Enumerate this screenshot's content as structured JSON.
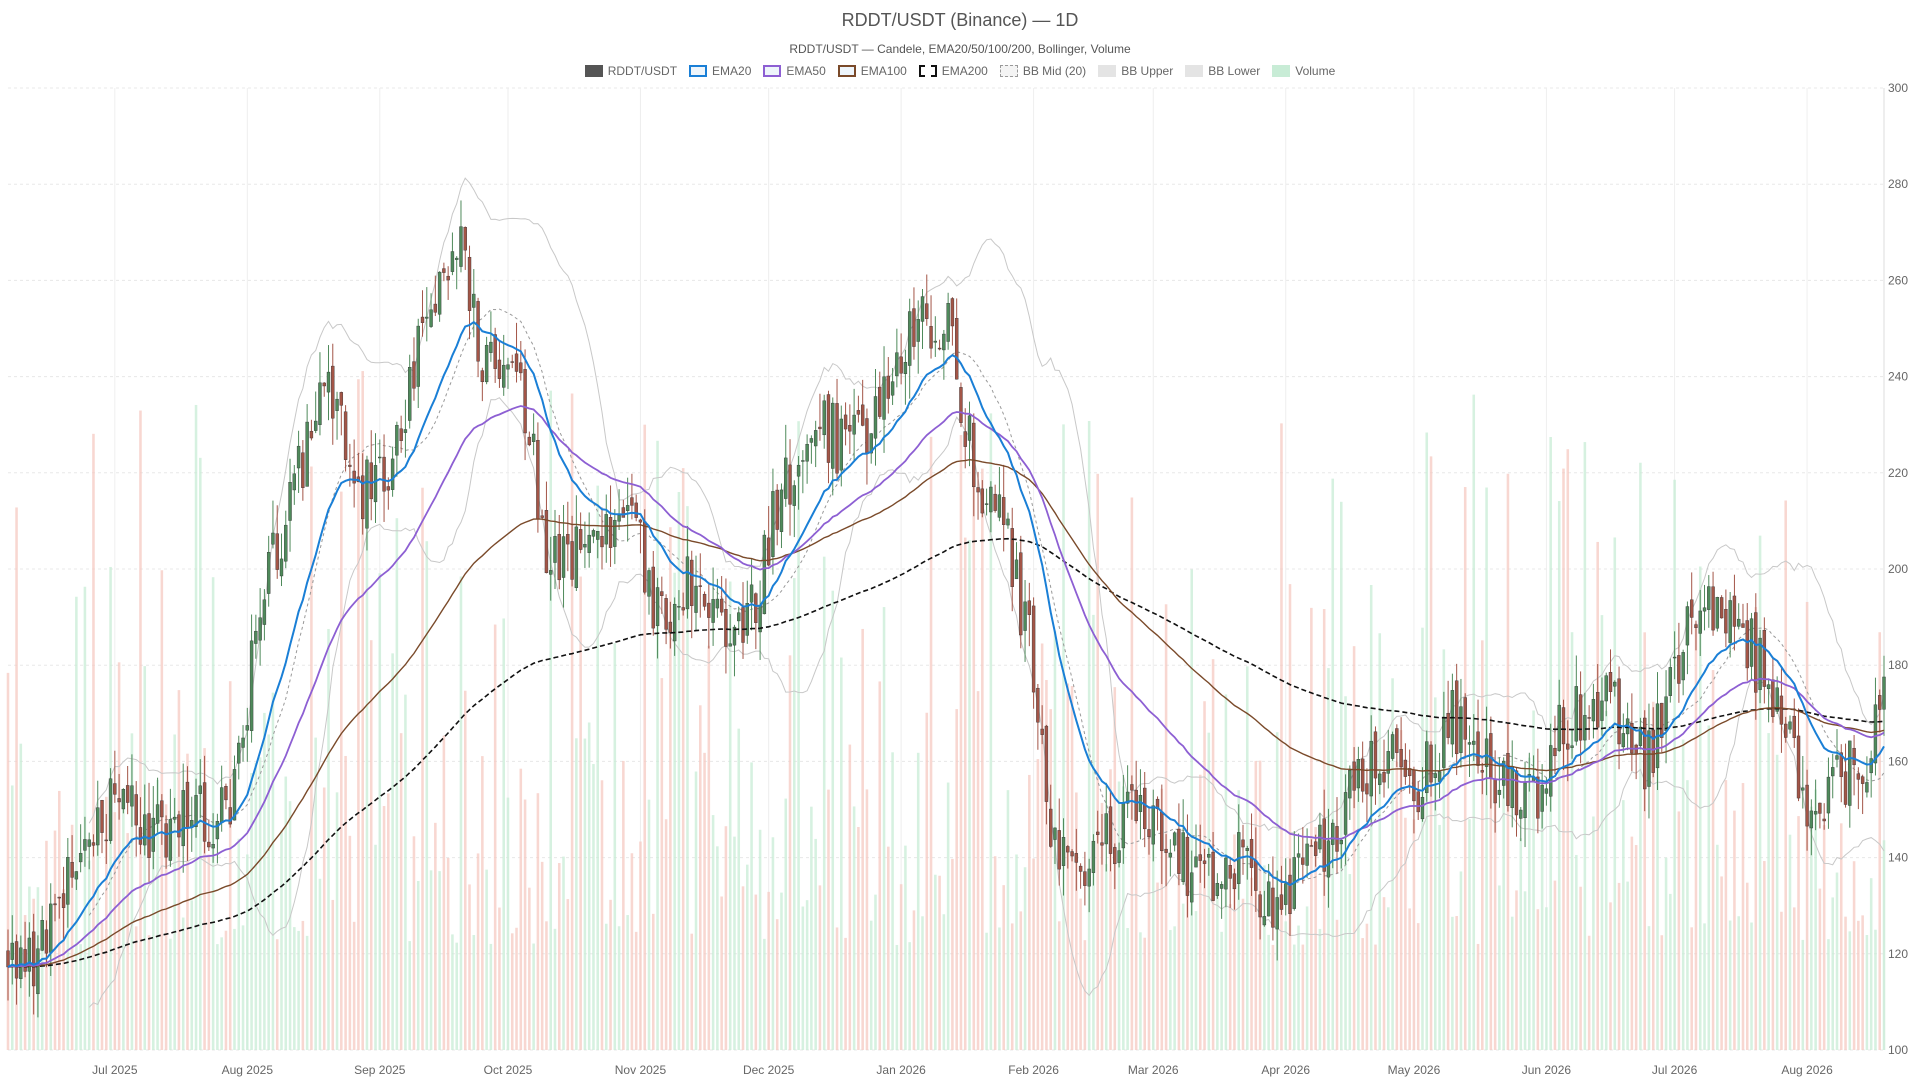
{
  "chart_data": {
    "type": "candlestick",
    "title": "RDDT/USDT (Binance) — 1D",
    "subtitle": "RDDT/USDT — Candele, EMA20/50/100/200, Bollinger, Volume",
    "ylim": [
      100,
      300
    ],
    "y_ticks": [
      "100",
      "120",
      "140",
      "160",
      "180",
      "200",
      "220",
      "240",
      "260",
      "280",
      "300"
    ],
    "x_ticks": [
      {
        "label": "Jul 2025",
        "date": "2025-07-01"
      },
      {
        "label": "Aug 2025",
        "date": "2025-08-01"
      },
      {
        "label": "Sep 2025",
        "date": "2025-09-01"
      },
      {
        "label": "Oct 2025",
        "date": "2025-10-01"
      },
      {
        "label": "Nov 2025",
        "date": "2025-11-01"
      },
      {
        "label": "Dec 2025",
        "date": "2025-12-01"
      },
      {
        "label": "Jan 2026",
        "date": "2026-01-01"
      },
      {
        "label": "Feb 2026",
        "date": "2026-02-01"
      },
      {
        "label": "Mar 2026",
        "date": "2026-03-01"
      },
      {
        "label": "Apr 2026",
        "date": "2026-04-01"
      },
      {
        "label": "May 2026",
        "date": "2026-05-01"
      },
      {
        "label": "Jun 2026",
        "date": "2026-06-01"
      },
      {
        "label": "Jul 2026",
        "date": "2026-07-01"
      },
      {
        "label": "Aug 2026",
        "date": "2026-08-01"
      }
    ],
    "x_range": [
      "2025-06-06",
      "2026-08-19"
    ],
    "legend": [
      {
        "name": "RDDT/USDT",
        "color": "#555555",
        "style": "fill"
      },
      {
        "name": "EMA20",
        "color": "#1a7fd6",
        "style": "line"
      },
      {
        "name": "EMA50",
        "color": "#8d5fd3",
        "style": "line"
      },
      {
        "name": "EMA100",
        "color": "#7a4a2a",
        "style": "line"
      },
      {
        "name": "EMA200",
        "color": "#111111",
        "style": "dash"
      },
      {
        "name": "BB Mid (20)",
        "color": "#aaaaaa",
        "style": "dotted"
      },
      {
        "name": "BB Upper",
        "color": "#cccccc",
        "style": "light"
      },
      {
        "name": "BB Lower",
        "color": "#cccccc",
        "style": "light"
      },
      {
        "name": "Volume",
        "color": "#c8ecd6",
        "style": "fill"
      }
    ],
    "colors": {
      "up": "#4f8a5b",
      "down": "#a35547",
      "ema20": "#1a7fd6",
      "ema50": "#8d5fd3",
      "ema100": "#7a4a2a",
      "ema200": "#111111",
      "bb_mid": "#999999",
      "bb_band": "#c8c8c8",
      "vol_up": "#c8ecd6",
      "vol_down": "#f5c9c2",
      "grid": "#e6e6e6"
    },
    "price_keypoints": [
      [
        "2025-06-06",
        120
      ],
      [
        "2025-06-12",
        116
      ],
      [
        "2025-06-20",
        135
      ],
      [
        "2025-07-01",
        152
      ],
      [
        "2025-07-10",
        145
      ],
      [
        "2025-07-20",
        148
      ],
      [
        "2025-07-28",
        150
      ],
      [
        "2025-08-03",
        185
      ],
      [
        "2025-08-10",
        213
      ],
      [
        "2025-08-20",
        240
      ],
      [
        "2025-08-28",
        215
      ],
      [
        "2025-09-05",
        225
      ],
      [
        "2025-09-12",
        252
      ],
      [
        "2025-09-20",
        270
      ],
      [
        "2025-09-25",
        245
      ],
      [
        "2025-10-05",
        235
      ],
      [
        "2025-10-10",
        203
      ],
      [
        "2025-10-20",
        205
      ],
      [
        "2025-10-30",
        212
      ],
      [
        "2025-11-05",
        190
      ],
      [
        "2025-11-15",
        200
      ],
      [
        "2025-11-25",
        183
      ],
      [
        "2025-12-03",
        215
      ],
      [
        "2025-12-12",
        230
      ],
      [
        "2025-12-20",
        225
      ],
      [
        "2025-12-30",
        238
      ],
      [
        "2026-01-05",
        255
      ],
      [
        "2026-01-12",
        250
      ],
      [
        "2026-01-18",
        220
      ],
      [
        "2026-01-25",
        210
      ],
      [
        "2026-02-01",
        180
      ],
      [
        "2026-02-05",
        145
      ],
      [
        "2026-02-15",
        140
      ],
      [
        "2026-02-25",
        150
      ],
      [
        "2026-03-05",
        145
      ],
      [
        "2026-03-12",
        134
      ],
      [
        "2026-03-20",
        140
      ],
      [
        "2026-03-28",
        128
      ],
      [
        "2026-04-05",
        135
      ],
      [
        "2026-04-15",
        150
      ],
      [
        "2026-04-22",
        162
      ],
      [
        "2026-05-01",
        155
      ],
      [
        "2026-05-10",
        168
      ],
      [
        "2026-05-20",
        158
      ],
      [
        "2026-05-30",
        150
      ],
      [
        "2026-06-05",
        168
      ],
      [
        "2026-06-15",
        172
      ],
      [
        "2026-06-25",
        160
      ],
      [
        "2026-07-05",
        188
      ],
      [
        "2026-07-15",
        195
      ],
      [
        "2026-07-20",
        180
      ],
      [
        "2026-07-28",
        170
      ],
      [
        "2026-08-02",
        143
      ],
      [
        "2026-08-06",
        155
      ],
      [
        "2026-08-14",
        160
      ],
      [
        "2026-08-19",
        172
      ]
    ]
  }
}
